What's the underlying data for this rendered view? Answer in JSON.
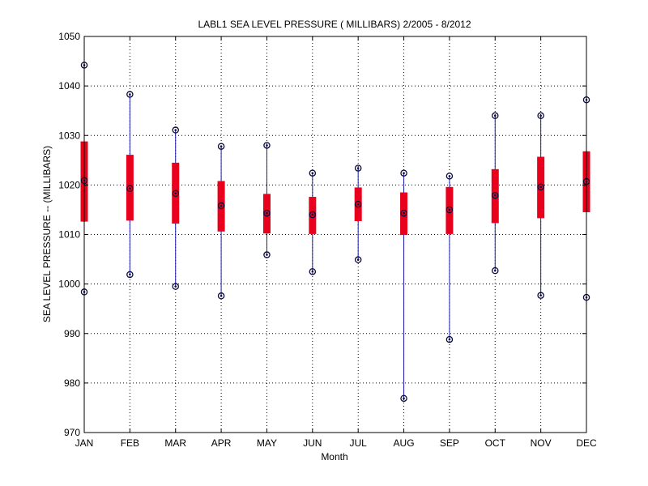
{
  "chart_data": {
    "type": "box",
    "title": "LABL1  SEA LEVEL PRESSURE ( MILLIBARS) 2/2005 - 8/2012",
    "xlabel": "Month",
    "ylabel": "SEA LEVEL PRESSURE -- (MILLIBARS)",
    "ylim": [
      970,
      1050
    ],
    "yticks": [
      970,
      980,
      990,
      1000,
      1010,
      1020,
      1030,
      1040,
      1050
    ],
    "grid": true,
    "categories": [
      "JAN",
      "FEB",
      "MAR",
      "APR",
      "MAY",
      "JUN",
      "JUL",
      "AUG",
      "SEP",
      "OCT",
      "NOV",
      "DEC"
    ],
    "series": [
      {
        "max": [
          1044.2,
          1038.3,
          1031.1,
          1027.8,
          1028.0,
          1022.4,
          1023.4,
          1022.4,
          1021.8,
          1034.0,
          1034.0,
          1037.2
        ],
        "q3": [
          1028.8,
          1026.1,
          1024.5,
          1020.8,
          1018.2,
          1017.6,
          1019.5,
          1018.5,
          1019.6,
          1023.2,
          1025.7,
          1026.8
        ],
        "median": [
          1020.9,
          1019.3,
          1018.3,
          1015.8,
          1014.3,
          1014.0,
          1016.1,
          1014.3,
          1015.0,
          1017.9,
          1019.6,
          1020.7
        ],
        "q1": [
          1012.6,
          1012.8,
          1012.2,
          1010.6,
          1010.2,
          1010.1,
          1012.7,
          1009.9,
          1010.1,
          1012.3,
          1013.3,
          1014.5
        ],
        "min": [
          998.4,
          1001.9,
          999.5,
          997.6,
          1005.9,
          1002.5,
          1004.9,
          976.9,
          988.8,
          1002.7,
          997.7,
          997.3
        ]
      }
    ],
    "colors": {
      "box": "#e8001c",
      "whisker": "#1c1cb4",
      "marker": "#0a0a3c",
      "axis": "#000000",
      "grid": "#000000"
    }
  }
}
